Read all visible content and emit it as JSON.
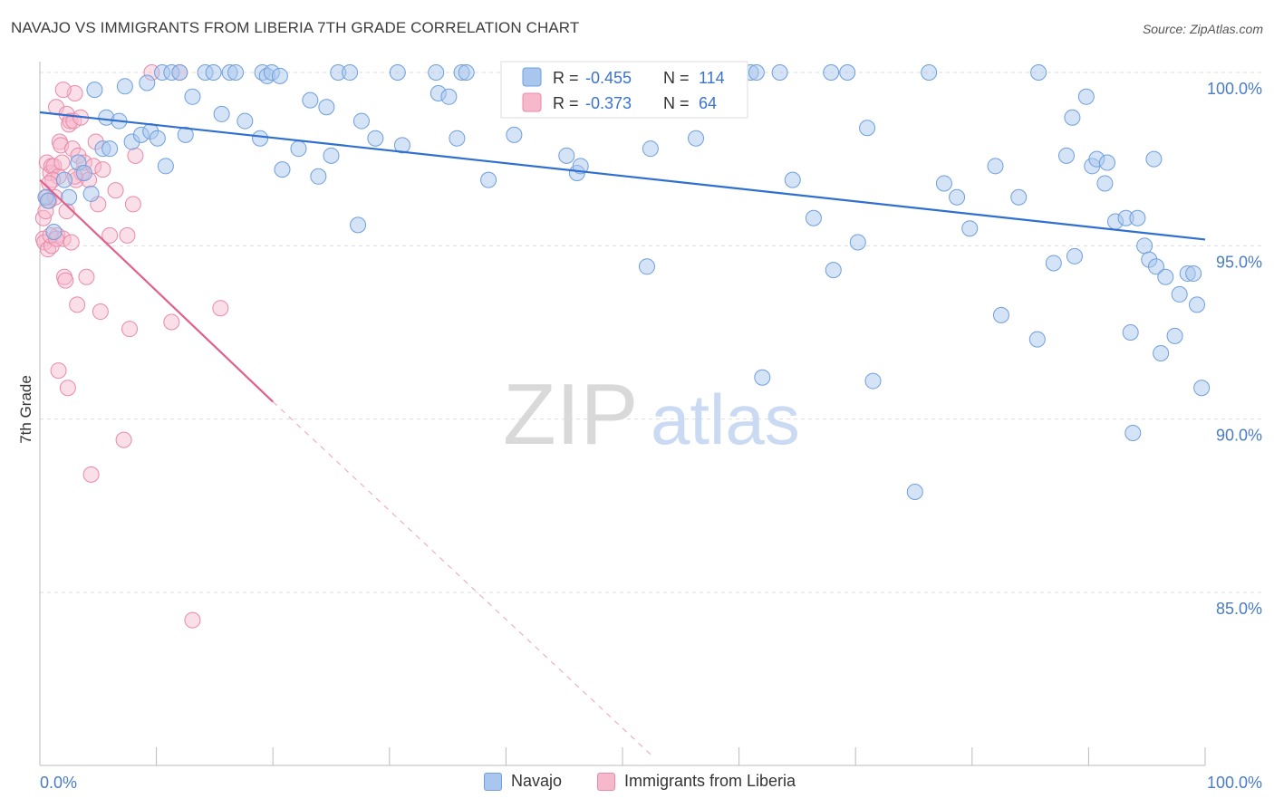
{
  "title": "NAVAJO VS IMMIGRANTS FROM LIBERIA 7TH GRADE CORRELATION CHART",
  "source": "Source: ZipAtlas.com",
  "watermark": {
    "zip": "ZIP",
    "atlas": "atlas"
  },
  "colors": {
    "navajo_fill": "#a9c7ee",
    "navajo_stroke": "#6f9fdc",
    "navajo_line": "#2f6fd0",
    "liberia_fill": "#f6b9cc",
    "liberia_stroke": "#e88aa8",
    "liberia_line": "#e0608a",
    "axis_label": "#4a7cc4",
    "grid": "#dddddd"
  },
  "legend": {
    "navajo": {
      "r_label": "R =",
      "r_value": "-0.455",
      "n_label": "N =",
      "n_value": "114"
    },
    "liberia": {
      "r_label": "R =",
      "r_value": "-0.373",
      "n_label": "N =",
      "n_value": "64"
    }
  },
  "bottom_legend": {
    "navajo": "Navajo",
    "liberia": "Immigrants from Liberia"
  },
  "chart_data": {
    "type": "scatter",
    "title": "NAVAJO VS IMMIGRANTS FROM LIBERIA 7TH GRADE CORRELATION CHART",
    "xlabel": "",
    "ylabel": "7th Grade",
    "xlim": [
      0,
      100
    ],
    "ylim": [
      80.5,
      100.5
    ],
    "x_tick_labels": [
      "0.0%",
      "100.0%"
    ],
    "y_ticks": [
      85,
      90,
      95,
      100
    ],
    "y_tick_labels": [
      "85.0%",
      "90.0%",
      "95.0%",
      "100.0%"
    ],
    "grid": true,
    "legend_position": "top-center",
    "series": [
      {
        "name": "Navajo",
        "r": -0.455,
        "n": 114,
        "trend": {
          "x": [
            0,
            100
          ],
          "y": [
            98.85,
            95.18
          ]
        },
        "points": [
          [
            0.5,
            96.4
          ],
          [
            0.7,
            96.3
          ],
          [
            1.2,
            95.4
          ],
          [
            2.1,
            96.9
          ],
          [
            2.5,
            96.4
          ],
          [
            3.3,
            97.4
          ],
          [
            3.8,
            97.1
          ],
          [
            4.4,
            96.5
          ],
          [
            4.7,
            99.5
          ],
          [
            5.4,
            97.8
          ],
          [
            5.7,
            98.7
          ],
          [
            6.0,
            97.8
          ],
          [
            6.8,
            98.6
          ],
          [
            7.3,
            99.6
          ],
          [
            7.9,
            98.0
          ],
          [
            8.7,
            98.2
          ],
          [
            9.2,
            99.7
          ],
          [
            9.5,
            98.3
          ],
          [
            10.1,
            98.1
          ],
          [
            10.5,
            100.0
          ],
          [
            10.8,
            97.3
          ],
          [
            11.3,
            100.0
          ],
          [
            12.0,
            100.0
          ],
          [
            12.5,
            98.2
          ],
          [
            13.1,
            99.3
          ],
          [
            14.2,
            100.0
          ],
          [
            14.9,
            100.0
          ],
          [
            15.6,
            98.8
          ],
          [
            16.3,
            100.0
          ],
          [
            16.8,
            100.0
          ],
          [
            17.6,
            98.6
          ],
          [
            18.9,
            98.1
          ],
          [
            19.1,
            100.0
          ],
          [
            19.5,
            99.9
          ],
          [
            19.9,
            100.0
          ],
          [
            20.6,
            99.9
          ],
          [
            20.8,
            97.2
          ],
          [
            22.2,
            97.8
          ],
          [
            23.2,
            99.2
          ],
          [
            23.9,
            97.0
          ],
          [
            24.6,
            99.0
          ],
          [
            25.0,
            97.6
          ],
          [
            25.6,
            100.0
          ],
          [
            26.6,
            100.0
          ],
          [
            27.3,
            95.6
          ],
          [
            27.6,
            98.6
          ],
          [
            28.8,
            98.1
          ],
          [
            30.7,
            100.0
          ],
          [
            31.1,
            97.9
          ],
          [
            34.0,
            100.0
          ],
          [
            34.2,
            99.4
          ],
          [
            35.1,
            99.3
          ],
          [
            35.8,
            98.1
          ],
          [
            36.2,
            100.0
          ],
          [
            36.6,
            100.0
          ],
          [
            38.5,
            96.9
          ],
          [
            40.7,
            98.2
          ],
          [
            44.7,
            100.0
          ],
          [
            45.2,
            97.6
          ],
          [
            46.1,
            97.1
          ],
          [
            46.4,
            97.3
          ],
          [
            52.1,
            94.4
          ],
          [
            52.4,
            97.8
          ],
          [
            53.3,
            100.0
          ],
          [
            56.3,
            98.1
          ],
          [
            58.6,
            100.0
          ],
          [
            61.0,
            100.0
          ],
          [
            61.5,
            100.0
          ],
          [
            62.0,
            91.2
          ],
          [
            63.5,
            100.0
          ],
          [
            64.6,
            96.9
          ],
          [
            66.4,
            95.8
          ],
          [
            67.9,
            100.0
          ],
          [
            68.1,
            94.3
          ],
          [
            69.3,
            100.0
          ],
          [
            70.2,
            95.1
          ],
          [
            71.0,
            98.4
          ],
          [
            71.5,
            91.1
          ],
          [
            75.1,
            87.9
          ],
          [
            76.3,
            100.0
          ],
          [
            77.6,
            96.8
          ],
          [
            78.7,
            96.4
          ],
          [
            79.8,
            95.5
          ],
          [
            82.0,
            97.3
          ],
          [
            82.5,
            93.0
          ],
          [
            84.0,
            96.4
          ],
          [
            85.6,
            92.3
          ],
          [
            85.7,
            100.0
          ],
          [
            87.0,
            94.5
          ],
          [
            88.1,
            97.6
          ],
          [
            88.6,
            98.7
          ],
          [
            88.8,
            94.7
          ],
          [
            89.8,
            99.3
          ],
          [
            90.3,
            97.3
          ],
          [
            90.7,
            97.5
          ],
          [
            91.4,
            96.8
          ],
          [
            91.6,
            97.4
          ],
          [
            92.3,
            95.7
          ],
          [
            93.2,
            95.8
          ],
          [
            93.6,
            92.5
          ],
          [
            93.8,
            89.6
          ],
          [
            94.2,
            95.8
          ],
          [
            94.8,
            95.0
          ],
          [
            95.2,
            94.6
          ],
          [
            95.6,
            97.5
          ],
          [
            95.8,
            94.4
          ],
          [
            96.2,
            91.9
          ],
          [
            96.6,
            94.1
          ],
          [
            97.4,
            92.4
          ],
          [
            97.8,
            93.6
          ],
          [
            98.5,
            94.2
          ],
          [
            99.0,
            94.2
          ],
          [
            99.3,
            93.3
          ],
          [
            99.7,
            90.9
          ]
        ]
      },
      {
        "name": "Immigrants from Liberia",
        "r": -0.373,
        "n": 64,
        "trend": {
          "x": [
            0,
            20
          ],
          "y": [
            96.9,
            90.5
          ]
        },
        "trend_dashed": {
          "x": [
            20,
            52.5
          ],
          "y": [
            90.5,
            80.3
          ]
        },
        "points": [
          [
            0.3,
            95.8
          ],
          [
            0.3,
            95.2
          ],
          [
            0.4,
            95.1
          ],
          [
            0.5,
            96.0
          ],
          [
            0.6,
            97.4
          ],
          [
            0.6,
            96.4
          ],
          [
            0.7,
            94.9
          ],
          [
            0.8,
            96.3
          ],
          [
            0.9,
            97.1
          ],
          [
            1.0,
            95.0
          ],
          [
            1.0,
            97.3
          ],
          [
            1.2,
            97.3
          ],
          [
            1.3,
            96.4
          ],
          [
            1.4,
            99.0
          ],
          [
            1.5,
            95.3
          ],
          [
            1.6,
            97.0
          ],
          [
            1.6,
            91.4
          ],
          [
            1.7,
            98.0
          ],
          [
            1.8,
            97.9
          ],
          [
            1.9,
            97.4
          ],
          [
            2.0,
            95.2
          ],
          [
            2.1,
            94.1
          ],
          [
            2.2,
            94.0
          ],
          [
            2.3,
            98.8
          ],
          [
            2.3,
            96.0
          ],
          [
            2.4,
            90.9
          ],
          [
            2.5,
            98.5
          ],
          [
            2.6,
            98.6
          ],
          [
            2.7,
            95.1
          ],
          [
            2.8,
            97.8
          ],
          [
            2.9,
            98.6
          ],
          [
            3.0,
            99.4
          ],
          [
            3.1,
            96.9
          ],
          [
            3.2,
            93.3
          ],
          [
            3.3,
            97.6
          ],
          [
            3.5,
            98.7
          ],
          [
            3.6,
            97.1
          ],
          [
            3.8,
            97.4
          ],
          [
            4.0,
            94.1
          ],
          [
            4.2,
            96.9
          ],
          [
            4.4,
            88.4
          ],
          [
            4.6,
            97.3
          ],
          [
            4.8,
            98.0
          ],
          [
            5.0,
            96.2
          ],
          [
            5.2,
            93.1
          ],
          [
            5.4,
            97.2
          ],
          [
            6.0,
            95.3
          ],
          [
            6.5,
            96.6
          ],
          [
            7.5,
            95.3
          ],
          [
            7.7,
            92.6
          ],
          [
            8.0,
            96.2
          ],
          [
            8.2,
            97.6
          ],
          [
            7.2,
            89.4
          ],
          [
            11.3,
            92.8
          ],
          [
            12.0,
            100.0
          ],
          [
            13.1,
            84.2
          ],
          [
            15.5,
            93.2
          ],
          [
            9.6,
            100.0
          ],
          [
            1.1,
            96.9
          ],
          [
            2.0,
            99.5
          ],
          [
            0.9,
            95.3
          ],
          [
            1.4,
            95.2
          ],
          [
            3.0,
            97.0
          ],
          [
            0.8,
            96.8
          ]
        ]
      }
    ]
  }
}
